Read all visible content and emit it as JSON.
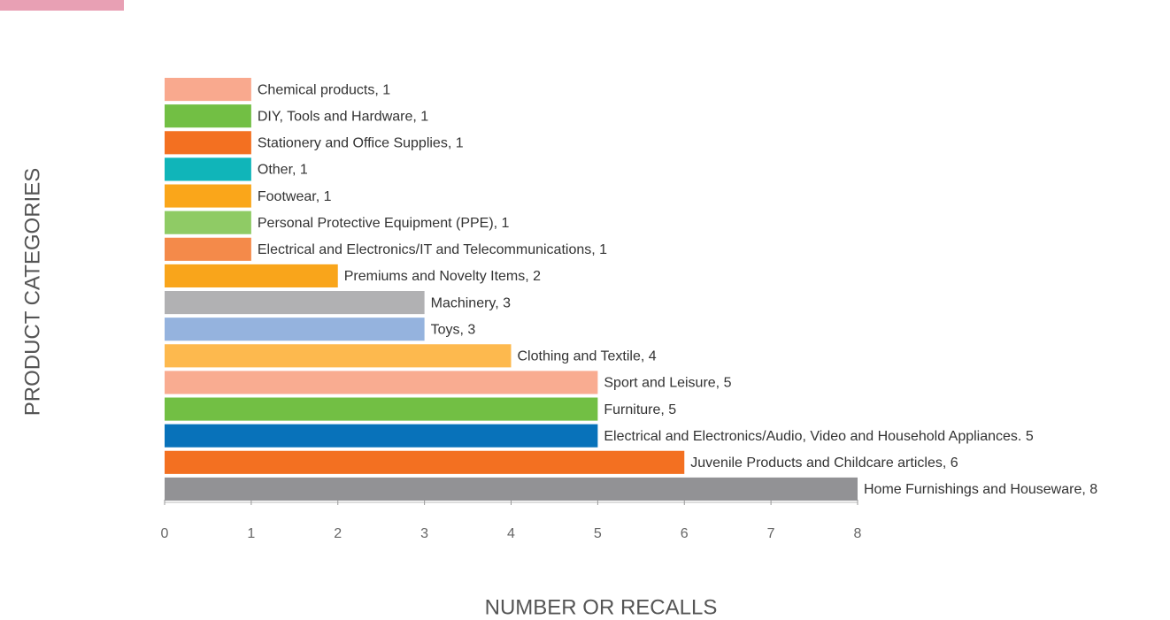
{
  "chart_data": {
    "type": "bar",
    "orientation": "horizontal",
    "x_label": "NUMBER OR RECALLS",
    "y_label": "PRODUCT CATEGORIES",
    "values": [
      1,
      1,
      1,
      1,
      1,
      1,
      1,
      2,
      3,
      3,
      4,
      5,
      5,
      5,
      6,
      8
    ],
    "value_labels": [
      "Chemical products, 1",
      "DIY, Tools and Hardware, 1",
      "Stationery and Office Supplies, 1",
      "Other, 1",
      "Footwear, 1",
      "Personal Protective Equipment (PPE), 1",
      "Electrical and Electronics/IT and Telecommunications, 1",
      "Premiums and Novelty Items, 2",
      "Machinery, 3",
      "Toys, 3",
      "Clothing and Textile, 4",
      "Sport and Leisure, 5",
      "Furniture, 5",
      "Electrical and Electronics/Audio, Video and Household Appliances. 5",
      "Juvenile Products and Childcare articles, 6",
      "Home Furnishings and Houseware, 8"
    ],
    "colors": [
      "#f9a98e",
      "#72bf44",
      "#f37021",
      "#10b5b9",
      "#faa61a",
      "#8fcb65",
      "#f48a4a",
      "#f9a51b",
      "#b1b1b3",
      "#95b3de",
      "#fdb94e",
      "#f9ac91",
      "#72bf44",
      "#0872ba",
      "#f37021",
      "#929295"
    ],
    "xlim": [
      0,
      8
    ],
    "xticks": [
      0,
      1,
      2,
      3,
      4,
      5,
      6,
      7,
      8
    ],
    "grid": false
  }
}
